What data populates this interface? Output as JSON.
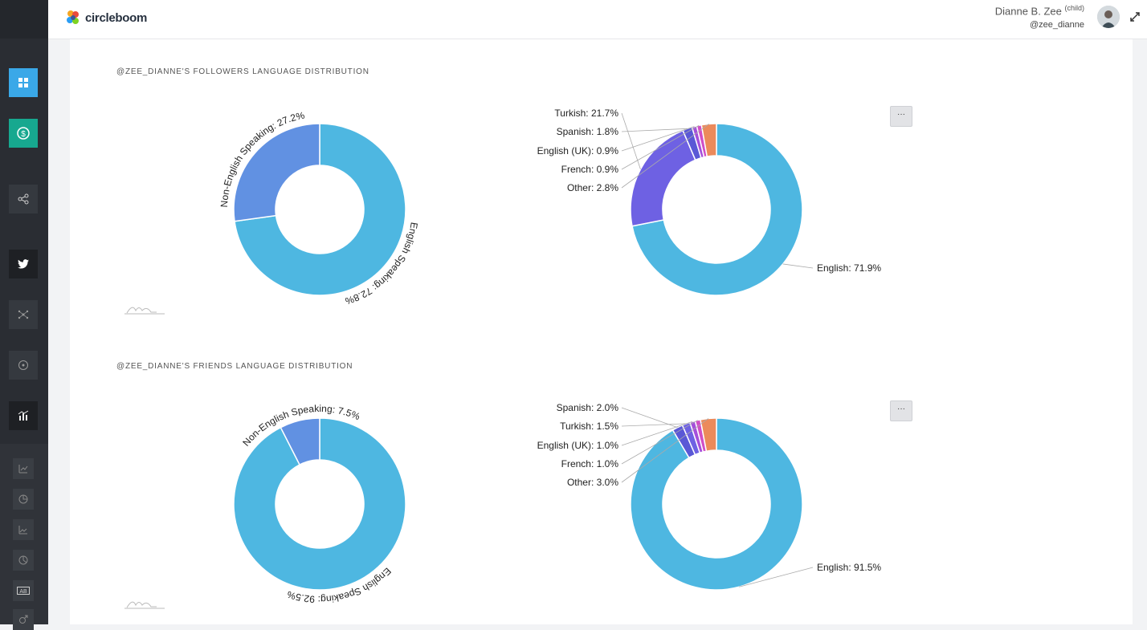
{
  "app": {
    "logo_text": "circleboom"
  },
  "user": {
    "name": "Dianne B. Zee",
    "tag": "(child)",
    "handle": "@zee_dianne"
  },
  "sidebar": {
    "items": [
      {
        "icon": "dashboard-icon",
        "active": true
      },
      {
        "icon": "dollar-icon",
        "active": true
      },
      {
        "icon": "share-icon"
      },
      {
        "icon": "twitter-icon"
      },
      {
        "icon": "network-icon"
      },
      {
        "icon": "circle-target-icon"
      },
      {
        "icon": "analytics-icon"
      },
      {
        "icon": "trend-chart-icon"
      },
      {
        "icon": "pie-chart-icon"
      },
      {
        "icon": "area-chart-icon"
      },
      {
        "icon": "pie-icon"
      },
      {
        "icon": "ab-test-icon"
      },
      {
        "icon": "gender-icon"
      }
    ]
  },
  "sections": {
    "followers": {
      "title": "@ZEE_DIANNE'S FOLLOWERS LANGUAGE DISTRIBUTION"
    },
    "friends": {
      "title": "@ZEE_DIANNE'S FRIENDS LANGUAGE DISTRIBUTION"
    }
  },
  "menu_label": "···",
  "colors": {
    "english": "#4eb7e1",
    "non_english": "#6191e2",
    "turkish": "#6e61e3",
    "spanish": "#5a58d6",
    "english_uk": "#a54fdb",
    "french": "#d14fc6",
    "other": "#ec8a5b"
  },
  "chart_data": [
    {
      "type": "pie",
      "name": "followers-speaking",
      "slices": [
        {
          "label": "English Speaking",
          "value": 72.8
        },
        {
          "label": "Non-English Speaking",
          "value": 27.2
        }
      ],
      "labels": [
        "English Speaking: 72.8%",
        "Non-English Speaking: 27.2%"
      ]
    },
    {
      "type": "pie",
      "name": "followers-languages",
      "slices": [
        {
          "label": "English",
          "value": 71.9
        },
        {
          "label": "Turkish",
          "value": 21.7
        },
        {
          "label": "Spanish",
          "value": 1.8
        },
        {
          "label": "English (UK)",
          "value": 0.9
        },
        {
          "label": "French",
          "value": 0.9
        },
        {
          "label": "Other",
          "value": 2.8
        }
      ],
      "labels": [
        "English: 71.9%",
        "Turkish: 21.7%",
        "Spanish: 1.8%",
        "English (UK): 0.9%",
        "French: 0.9%",
        "Other: 2.8%"
      ]
    },
    {
      "type": "pie",
      "name": "friends-speaking",
      "slices": [
        {
          "label": "English Speaking",
          "value": 92.5
        },
        {
          "label": "Non-English Speaking",
          "value": 7.5
        }
      ],
      "labels": [
        "English Speaking: 92.5%",
        "Non-English Speaking: 7.5%"
      ]
    },
    {
      "type": "pie",
      "name": "friends-languages",
      "slices": [
        {
          "label": "English",
          "value": 91.5
        },
        {
          "label": "Spanish",
          "value": 2.0
        },
        {
          "label": "Turkish",
          "value": 1.5
        },
        {
          "label": "English (UK)",
          "value": 1.0
        },
        {
          "label": "French",
          "value": 1.0
        },
        {
          "label": "Other",
          "value": 3.0
        }
      ],
      "labels": [
        "English: 91.5%",
        "Spanish: 2.0%",
        "Turkish: 1.5%",
        "English (UK): 1.0%",
        "French: 1.0%",
        "Other: 3.0%"
      ]
    }
  ]
}
